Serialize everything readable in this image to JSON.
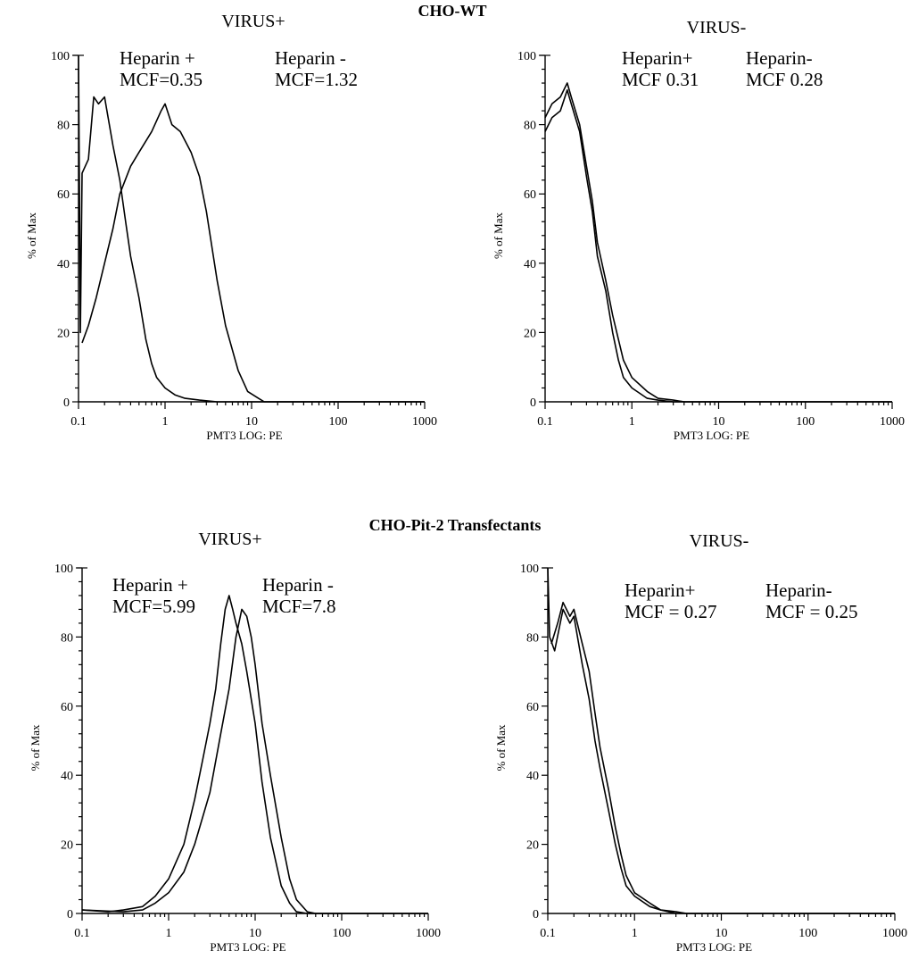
{
  "figure": {
    "group_titles": [
      "CHO-WT",
      "CHO-Pit-2 Transfectants"
    ]
  },
  "chart_data": [
    {
      "type": "line",
      "group": "CHO-WT",
      "title": "VIRUS+",
      "xlabel": "PMT3 LOG: PE",
      "ylabel": "% of Max",
      "xscale": "log",
      "xlim": [
        0.1,
        1000
      ],
      "ylim": [
        0,
        100
      ],
      "x_ticks": [
        0.1,
        1,
        10,
        100,
        1000
      ],
      "x_tick_labels": [
        "0.1",
        "1",
        "10",
        "100",
        "1000"
      ],
      "y_ticks": [
        0,
        20,
        40,
        60,
        80,
        100
      ],
      "y_tick_labels": [
        "0",
        "20",
        "40",
        "60",
        "80",
        "100"
      ],
      "annotations": [
        {
          "lines": [
            "Heparin +",
            "MCF=0.35"
          ],
          "position": "top-left"
        },
        {
          "lines": [
            "Heparin -",
            "MCF=1.32"
          ],
          "position": "top-center"
        }
      ],
      "series": [
        {
          "values": [
            [
              0.095,
              100
            ],
            [
              0.1,
              100
            ],
            [
              0.105,
              20
            ],
            [
              0.11,
              66
            ],
            [
              0.13,
              70
            ],
            [
              0.15,
              88
            ],
            [
              0.17,
              86
            ],
            [
              0.2,
              88
            ],
            [
              0.22,
              82
            ],
            [
              0.25,
              74
            ],
            [
              0.3,
              64
            ],
            [
              0.35,
              52
            ],
            [
              0.4,
              42
            ],
            [
              0.5,
              30
            ],
            [
              0.6,
              18
            ],
            [
              0.7,
              11
            ],
            [
              0.8,
              7
            ],
            [
              1,
              4
            ],
            [
              1.3,
              2
            ],
            [
              1.7,
              1
            ],
            [
              2.5,
              0.5
            ],
            [
              4,
              0
            ],
            [
              1000,
              0
            ]
          ]
        },
        {
          "values": [
            [
              0.11,
              17
            ],
            [
              0.13,
              22
            ],
            [
              0.16,
              30
            ],
            [
              0.2,
              40
            ],
            [
              0.25,
              50
            ],
            [
              0.3,
              60
            ],
            [
              0.4,
              68
            ],
            [
              0.5,
              72
            ],
            [
              0.7,
              78
            ],
            [
              0.9,
              84
            ],
            [
              1,
              86
            ],
            [
              1.2,
              80
            ],
            [
              1.5,
              78
            ],
            [
              2,
              72
            ],
            [
              2.5,
              65
            ],
            [
              3,
              55
            ],
            [
              4,
              35
            ],
            [
              5,
              22
            ],
            [
              7,
              9
            ],
            [
              9,
              3
            ],
            [
              12,
              1
            ],
            [
              14,
              0
            ],
            [
              1000,
              0
            ]
          ]
        }
      ]
    },
    {
      "type": "line",
      "group": "CHO-WT",
      "title": "VIRUS-",
      "xlabel": "PMT3 LOG: PE",
      "ylabel": "% of Max",
      "xscale": "log",
      "xlim": [
        0.1,
        1000
      ],
      "ylim": [
        0,
        100
      ],
      "x_ticks": [
        0.1,
        1,
        10,
        100,
        1000
      ],
      "x_tick_labels": [
        "0.1",
        "1",
        "10",
        "100",
        "1000"
      ],
      "y_ticks": [
        0,
        20,
        40,
        60,
        80,
        100
      ],
      "y_tick_labels": [
        "0",
        "20",
        "40",
        "60",
        "80",
        "100"
      ],
      "annotations": [
        {
          "lines": [
            "Heparin+",
            "MCF 0.31"
          ],
          "position": "top-left"
        },
        {
          "lines": [
            "Heparin-",
            "MCF 0.28"
          ],
          "position": "top-center"
        }
      ],
      "series": [
        {
          "values": [
            [
              0.1,
              78
            ],
            [
              0.12,
              82
            ],
            [
              0.15,
              84
            ],
            [
              0.18,
              90
            ],
            [
              0.2,
              86
            ],
            [
              0.25,
              78
            ],
            [
              0.3,
              65
            ],
            [
              0.35,
              55
            ],
            [
              0.4,
              42
            ],
            [
              0.5,
              32
            ],
            [
              0.6,
              20
            ],
            [
              0.7,
              12
            ],
            [
              0.8,
              7
            ],
            [
              1,
              4
            ],
            [
              1.5,
              1
            ],
            [
              2,
              0.5
            ],
            [
              3,
              0
            ],
            [
              1000,
              0
            ]
          ]
        },
        {
          "values": [
            [
              0.1,
              82
            ],
            [
              0.12,
              86
            ],
            [
              0.15,
              88
            ],
            [
              0.18,
              92
            ],
            [
              0.2,
              88
            ],
            [
              0.25,
              80
            ],
            [
              0.3,
              68
            ],
            [
              0.35,
              58
            ],
            [
              0.4,
              46
            ],
            [
              0.5,
              35
            ],
            [
              0.6,
              25
            ],
            [
              0.7,
              18
            ],
            [
              0.8,
              12
            ],
            [
              1,
              7
            ],
            [
              1.5,
              3
            ],
            [
              2,
              1
            ],
            [
              3,
              0.5
            ],
            [
              4,
              0
            ],
            [
              1000,
              0
            ]
          ]
        }
      ]
    },
    {
      "type": "line",
      "group": "CHO-Pit-2 Transfectants",
      "title": "VIRUS+",
      "xlabel": "PMT3 LOG: PE",
      "ylabel": "% of Max",
      "xscale": "log",
      "xlim": [
        0.1,
        1000
      ],
      "ylim": [
        0,
        100
      ],
      "x_ticks": [
        0.1,
        1,
        10,
        100,
        1000
      ],
      "x_tick_labels": [
        "0.1",
        "1",
        "10",
        "100",
        "1000"
      ],
      "y_ticks": [
        0,
        20,
        40,
        60,
        80,
        100
      ],
      "y_tick_labels": [
        "0",
        "20",
        "40",
        "60",
        "80",
        "100"
      ],
      "annotations": [
        {
          "lines": [
            "Heparin +",
            "MCF=5.99"
          ],
          "position": "top-left"
        },
        {
          "lines": [
            "Heparin -",
            "MCF=7.8"
          ],
          "position": "top-center"
        }
      ],
      "series": [
        {
          "values": [
            [
              0.1,
              1
            ],
            [
              0.2,
              0.5
            ],
            [
              0.3,
              1
            ],
            [
              0.5,
              2
            ],
            [
              0.7,
              5
            ],
            [
              1,
              10
            ],
            [
              1.5,
              20
            ],
            [
              2,
              33
            ],
            [
              2.5,
              45
            ],
            [
              3,
              55
            ],
            [
              3.5,
              65
            ],
            [
              4,
              78
            ],
            [
              4.5,
              88
            ],
            [
              5,
              92
            ],
            [
              5.5,
              88
            ],
            [
              6,
              84
            ],
            [
              7,
              78
            ],
            [
              8,
              70
            ],
            [
              10,
              55
            ],
            [
              12,
              38
            ],
            [
              15,
              22
            ],
            [
              20,
              8
            ],
            [
              25,
              3
            ],
            [
              30,
              0.5
            ],
            [
              40,
              0
            ],
            [
              1000,
              0
            ]
          ]
        },
        {
          "values": [
            [
              0.1,
              1
            ],
            [
              0.3,
              0.5
            ],
            [
              0.5,
              1
            ],
            [
              0.7,
              3
            ],
            [
              1,
              6
            ],
            [
              1.5,
              12
            ],
            [
              2,
              20
            ],
            [
              3,
              35
            ],
            [
              4,
              52
            ],
            [
              5,
              65
            ],
            [
              6,
              80
            ],
            [
              7,
              88
            ],
            [
              8,
              86
            ],
            [
              9,
              80
            ],
            [
              10,
              72
            ],
            [
              12,
              55
            ],
            [
              15,
              40
            ],
            [
              20,
              22
            ],
            [
              25,
              10
            ],
            [
              30,
              4
            ],
            [
              40,
              0.5
            ],
            [
              50,
              0
            ],
            [
              1000,
              0
            ]
          ]
        }
      ]
    },
    {
      "type": "line",
      "group": "CHO-Pit-2 Transfectants",
      "title": "VIRUS-",
      "xlabel": "PMT3 LOG: PE",
      "ylabel": "% of Max",
      "xscale": "log",
      "xlim": [
        0.1,
        1000
      ],
      "ylim": [
        0,
        100
      ],
      "x_ticks": [
        0.1,
        1,
        10,
        100,
        1000
      ],
      "x_tick_labels": [
        "0.1",
        "1",
        "10",
        "100",
        "1000"
      ],
      "y_ticks": [
        0,
        20,
        40,
        60,
        80,
        100
      ],
      "y_tick_labels": [
        "0",
        "20",
        "40",
        "60",
        "80",
        "100"
      ],
      "annotations": [
        {
          "lines": [
            "Heparin+",
            "MCF = 0.27"
          ],
          "position": "top-left"
        },
        {
          "lines": [
            "Heparin-",
            "MCF = 0.25"
          ],
          "position": "top-center"
        }
      ],
      "series": [
        {
          "values": [
            [
              0.1,
              100
            ],
            [
              0.105,
              80
            ],
            [
              0.12,
              76
            ],
            [
              0.15,
              88
            ],
            [
              0.18,
              84
            ],
            [
              0.2,
              86
            ],
            [
              0.25,
              72
            ],
            [
              0.3,
              62
            ],
            [
              0.35,
              50
            ],
            [
              0.4,
              42
            ],
            [
              0.5,
              30
            ],
            [
              0.6,
              20
            ],
            [
              0.7,
              13
            ],
            [
              0.8,
              8
            ],
            [
              1,
              5
            ],
            [
              1.5,
              2
            ],
            [
              2,
              1
            ],
            [
              3,
              0
            ],
            [
              1000,
              0
            ]
          ]
        },
        {
          "values": [
            [
              0.11,
              78
            ],
            [
              0.13,
              84
            ],
            [
              0.15,
              90
            ],
            [
              0.18,
              86
            ],
            [
              0.2,
              88
            ],
            [
              0.25,
              78
            ],
            [
              0.3,
              70
            ],
            [
              0.35,
              58
            ],
            [
              0.4,
              48
            ],
            [
              0.5,
              36
            ],
            [
              0.6,
              25
            ],
            [
              0.7,
              17
            ],
            [
              0.8,
              11
            ],
            [
              1,
              6
            ],
            [
              1.5,
              3
            ],
            [
              2,
              1
            ],
            [
              3,
              0.5
            ],
            [
              4,
              0
            ],
            [
              1000,
              0
            ]
          ]
        }
      ]
    }
  ]
}
